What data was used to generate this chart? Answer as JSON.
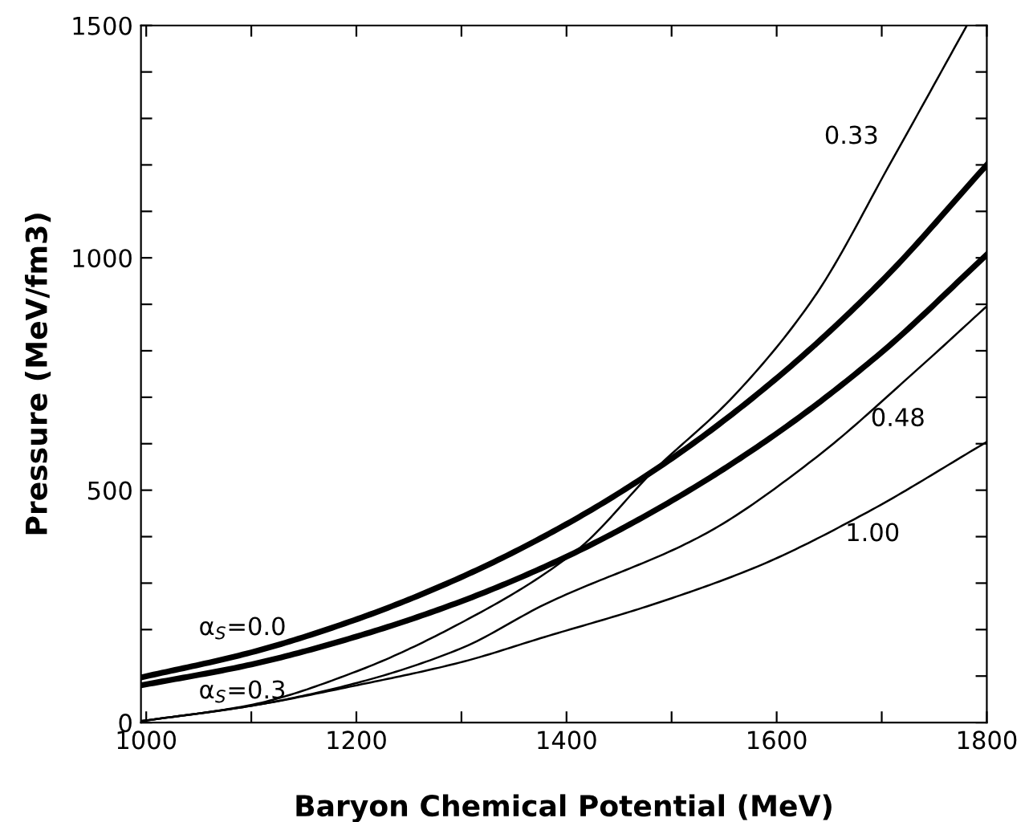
{
  "chart_data": {
    "type": "line",
    "xlabel": "Baryon Chemical Potential (MeV)",
    "ylabel": "Pressure (MeV/fm3)",
    "xlim": [
      995,
      1800
    ],
    "ylim": [
      0,
      1500
    ],
    "xticks": [
      1000,
      {
        "value": 1100,
        "label": null
      },
      1200,
      {
        "value": 1300,
        "label": null
      },
      1400,
      {
        "value": 1500,
        "label": null
      },
      1600,
      {
        "value": 1700,
        "label": null
      },
      1800
    ],
    "yticks": [
      0,
      {
        "value": 100,
        "label": null
      },
      {
        "value": 200,
        "label": null
      },
      {
        "value": 300,
        "label": null
      },
      {
        "value": 400,
        "label": null
      },
      500,
      {
        "value": 600,
        "label": null
      },
      {
        "value": 700,
        "label": null
      },
      {
        "value": 800,
        "label": null
      },
      {
        "value": 900,
        "label": null
      },
      1000,
      {
        "value": 1100,
        "label": null
      },
      {
        "value": 1200,
        "label": null
      },
      {
        "value": 1300,
        "label": null
      },
      {
        "value": 1400,
        "label": null
      },
      1500
    ],
    "grid": false,
    "legend": false,
    "marker": "none",
    "line_style": "solid",
    "series": [
      {
        "name": "α$_{S}$=0.0",
        "color": "#000000",
        "x": [
          995,
          1100,
          1200,
          1300,
          1400,
          1500,
          1600,
          1700,
          1800
        ],
        "values": [
          97,
          151,
          222,
          313,
          427,
          568,
          741,
          950,
          1200
        ]
      },
      {
        "name": "α$_{S}$=0.3",
        "color": "#000000",
        "x": [
          995,
          1100,
          1200,
          1300,
          1400,
          1500,
          1600,
          1700,
          1800
        ],
        "values": [
          80,
          125,
          185,
          261,
          357,
          477,
          622,
          797,
          1007
        ]
      },
      {
        "name": "0.33",
        "color": "#000000",
        "x": [
          995,
          1100,
          1200,
          1300,
          1410,
          1483,
          1558,
          1635,
          1711,
          1781
        ],
        "values": [
          3,
          38,
          110,
          215,
          371,
          542,
          700,
          913,
          1215,
          1500
        ]
      },
      {
        "name": "0.48",
        "color": "#000000",
        "x": [
          995,
          1100,
          1200,
          1300,
          1379,
          1532,
          1635,
          1736,
          1800
        ],
        "values": [
          3,
          36,
          85,
          160,
          254,
          406,
          566,
          764,
          896
        ]
      },
      {
        "name": "1.00",
        "color": "#000000",
        "x": [
          995,
          1100,
          1200,
          1300,
          1379,
          1482,
          1583,
          1685,
          1800
        ],
        "values": [
          3,
          36,
          80,
          130,
          184,
          254,
          337,
          451,
          604
        ]
      }
    ]
  }
}
